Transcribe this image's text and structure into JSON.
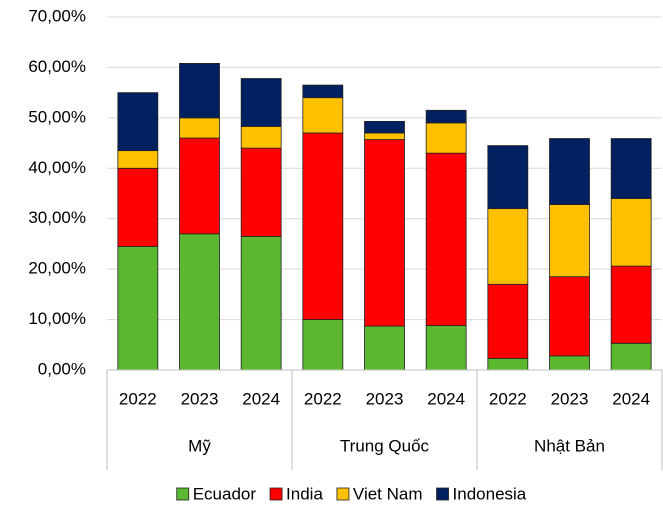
{
  "chart_data": {
    "type": "stacked_bar",
    "categories": [
      "2022",
      "2023",
      "2024",
      "2022",
      "2023",
      "2024",
      "2022",
      "2023",
      "2024"
    ],
    "groups": [
      "Mỹ",
      "Trung Quốc",
      "Nhật Bản"
    ],
    "series": [
      {
        "name": "Ecuador",
        "color": "#5cb82e",
        "values": [
          24.5,
          27,
          26.5,
          10,
          8.7,
          8.8,
          2.3,
          2.8,
          5.3
        ]
      },
      {
        "name": "India",
        "color": "#ff0000",
        "values": [
          15.5,
          19,
          17.5,
          37,
          37,
          34.2,
          14.7,
          15.7,
          15.3
        ]
      },
      {
        "name": "Viet Nam",
        "color": "#ffc000",
        "values": [
          3.5,
          4,
          4.3,
          7,
          1.3,
          6,
          15,
          14.3,
          13.4
        ]
      },
      {
        "name": "Indonesia",
        "color": "#002060",
        "values": [
          11.5,
          10.8,
          9.5,
          2.5,
          2.3,
          2.5,
          12.5,
          13.1,
          11.9
        ]
      }
    ],
    "ylim": [
      0,
      70
    ],
    "yticks": [
      {
        "value": 0,
        "label": "0,00%"
      },
      {
        "value": 10,
        "label": "10,00%"
      },
      {
        "value": 20,
        "label": "20,00%"
      },
      {
        "value": 30,
        "label": "30,00%"
      },
      {
        "value": 40,
        "label": "40,00%"
      },
      {
        "value": 50,
        "label": "50,00%"
      },
      {
        "value": 60,
        "label": "60,00%"
      },
      {
        "value": 70,
        "label": "70,00%"
      }
    ],
    "grid": true,
    "legend": "bottom"
  }
}
